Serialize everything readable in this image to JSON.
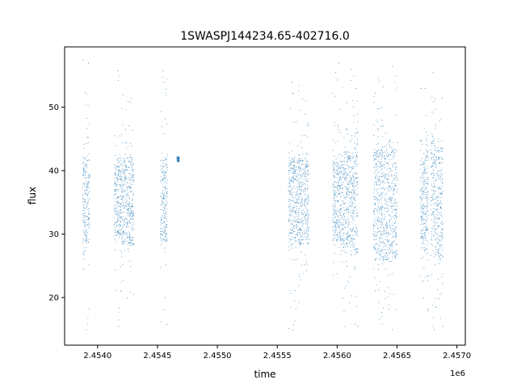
{
  "chart_data": {
    "type": "scatter",
    "title": "1SWASPJ144234.65-402716.0",
    "xlabel": "time",
    "ylabel": "flux",
    "x_offset_label": "1e6",
    "xlim": [
      2453725,
      2457070
    ],
    "ylim": [
      12.5,
      59.5
    ],
    "x_ticks": [
      2454000,
      2454500,
      2455000,
      2455500,
      2456000,
      2456500,
      2457000
    ],
    "x_tick_labels": [
      "2.4540",
      "2.4545",
      "2.4550",
      "2.4555",
      "2.4560",
      "2.4565",
      "2.4570"
    ],
    "y_ticks": [
      20,
      30,
      40,
      50
    ],
    "y_tick_labels": [
      "20",
      "30",
      "40",
      "50"
    ],
    "grid": false,
    "marker_color": "#1f77b4",
    "series": [
      {
        "name": "",
        "clusters": [
          {
            "x_start": 2453872,
            "x_end": 2453890,
            "y_min": 29,
            "y_max": 42,
            "outlier_min": 24.5,
            "outlier_max": 57.5
          },
          {
            "x_start": 2453890,
            "x_end": 2453930,
            "y_min": 28.5,
            "y_max": 42,
            "outlier_min": 15,
            "outlier_max": 57
          },
          {
            "x_start": 2454135,
            "x_end": 2454195,
            "y_min": 30,
            "y_max": 42,
            "outlier_min": 15.5,
            "outlier_max": 55.8
          },
          {
            "x_start": 2454195,
            "x_end": 2454300,
            "y_min": 28.5,
            "y_max": 42,
            "outlier_min": 20,
            "outlier_max": 52
          },
          {
            "x_start": 2454520,
            "x_end": 2454580,
            "y_min": 29,
            "y_max": 42,
            "outlier_min": 15.8,
            "outlier_max": 55.8
          },
          {
            "x_start": 2454660,
            "x_end": 2454680,
            "y_min": 41.5,
            "y_max": 42.2,
            "outlier_min": 41.5,
            "outlier_max": 42.2
          },
          {
            "x_start": 2455590,
            "x_end": 2455760,
            "y_min": 28.5,
            "y_max": 42,
            "outlier_min": 15,
            "outlier_max": 54
          },
          {
            "x_start": 2455960,
            "x_end": 2456050,
            "y_min": 29,
            "y_max": 41.5,
            "outlier_min": 20,
            "outlier_max": 57
          },
          {
            "x_start": 2456050,
            "x_end": 2456140,
            "y_min": 28,
            "y_max": 43,
            "outlier_min": 15.5,
            "outlier_max": 56
          },
          {
            "x_start": 2456140,
            "x_end": 2456170,
            "y_min": 27,
            "y_max": 45.5,
            "outlier_min": 15.5,
            "outlier_max": 53
          },
          {
            "x_start": 2456300,
            "x_end": 2456500,
            "y_min": 26,
            "y_max": 43.5,
            "outlier_min": 15,
            "outlier_max": 56.5
          },
          {
            "x_start": 2456690,
            "x_end": 2456720,
            "y_min": 29,
            "y_max": 41.5,
            "outlier_min": 20,
            "outlier_max": 53
          },
          {
            "x_start": 2456720,
            "x_end": 2456760,
            "y_min": 27.5,
            "y_max": 43.5,
            "outlier_min": 18,
            "outlier_max": 53
          },
          {
            "x_start": 2456780,
            "x_end": 2456810,
            "y_min": 28,
            "y_max": 45,
            "outlier_min": 15,
            "outlier_max": 55.5
          },
          {
            "x_start": 2456810,
            "x_end": 2456880,
            "y_min": 26,
            "y_max": 43.5,
            "outlier_min": 15.5,
            "outlier_max": 51.5
          }
        ]
      }
    ]
  }
}
